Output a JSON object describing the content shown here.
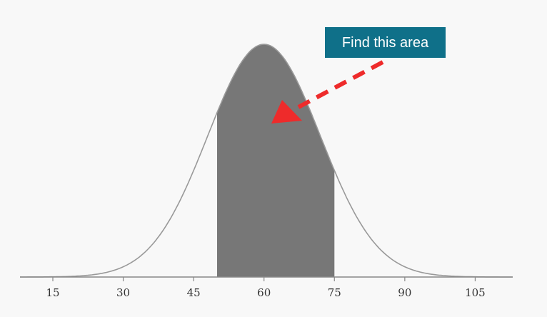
{
  "chart_data": {
    "type": "area",
    "title": "",
    "xlabel": "",
    "ylabel": "",
    "distribution": "normal",
    "mean": 60,
    "sd": 12,
    "xlim": [
      8,
      113
    ],
    "x_ticks": [
      15,
      30,
      45,
      60,
      75,
      90,
      105
    ],
    "shaded_region": [
      50,
      75
    ],
    "grid": false,
    "annotation": {
      "text": "Find this area",
      "points_to": "shaded-region"
    },
    "colors": {
      "curve": "#999999",
      "shade": "#777777",
      "axis": "#888888",
      "callout_bg": "#0f7089",
      "callout_text": "#ffffff",
      "arrow": "#ee2b2b"
    }
  }
}
